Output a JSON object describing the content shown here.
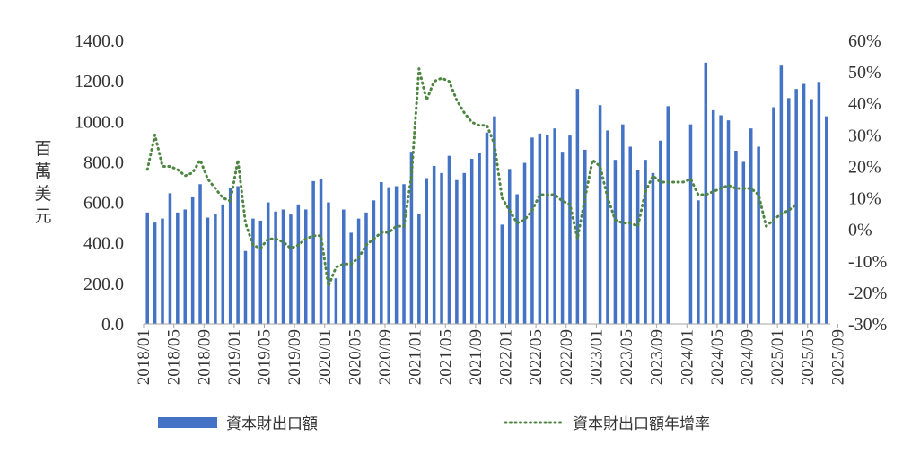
{
  "colors": {
    "bar": "#4472C4",
    "line": "#4E8542",
    "axis": "#A6A6A6",
    "text": "#333333"
  },
  "chart_data": {
    "type": "bar+line",
    "ylabel": "百萬美元",
    "ylim": [
      0,
      1400
    ],
    "y_ticks": [
      "0.0",
      "200.0",
      "400.0",
      "600.0",
      "800.0",
      "1000.0",
      "1200.0",
      "1400.0"
    ],
    "y2lim": [
      -30,
      60
    ],
    "y2_ticks": [
      "-30%",
      "-20%",
      "-10%",
      "0%",
      "10%",
      "20%",
      "30%",
      "40%",
      "50%",
      "60%"
    ],
    "x_tick_labels": [
      "2018/01",
      "2018/05",
      "2018/09",
      "2019/01",
      "2019/05",
      "2019/09",
      "2020/01",
      "2020/05",
      "2020/09",
      "2021/01",
      "2021/05",
      "2021/09",
      "2022/01",
      "2022/05",
      "2022/09",
      "2023/01",
      "2023/05",
      "2023/09",
      "2024/01",
      "2024/05",
      "2024/09",
      "2025/01",
      "2025/05",
      "2025/09"
    ],
    "x_tick_every": 4,
    "grid": false,
    "legend_position": "bottom",
    "series": [
      {
        "name": "資本財出口額",
        "type": "bar",
        "axis": "left",
        "values": [
          550,
          500,
          520,
          645,
          550,
          565,
          625,
          690,
          525,
          545,
          590,
          670,
          680,
          360,
          520,
          510,
          600,
          555,
          565,
          540,
          590,
          565,
          705,
          715,
          600,
          225,
          565,
          450,
          520,
          550,
          610,
          700,
          675,
          680,
          690,
          850,
          545,
          720,
          780,
          745,
          830,
          710,
          745,
          815,
          845,
          945,
          1025,
          490,
          765,
          640,
          795,
          920,
          940,
          935,
          965,
          850,
          930,
          1160,
          860,
          null,
          1080,
          955,
          810,
          985,
          875,
          760,
          810,
          745,
          905,
          1075,
          null,
          null,
          985,
          610,
          1290,
          1055,
          1030,
          1005,
          855,
          800,
          965,
          875,
          null,
          1070,
          1275,
          1115,
          1160,
          1185,
          1110,
          1195,
          1025
        ]
      },
      {
        "name": "資本財出口額年增率",
        "type": "line",
        "axis": "right",
        "style": "dotted",
        "values": [
          19,
          30,
          20,
          20,
          19,
          17,
          18,
          22,
          16,
          13,
          10,
          9,
          22,
          2,
          -5,
          -6,
          -3,
          -3,
          -4,
          -6,
          -5,
          -3,
          -2,
          -2,
          -18,
          -12,
          -11,
          -11,
          -9,
          -5,
          -3,
          -1,
          -1,
          1,
          1,
          17,
          51,
          41,
          47,
          48,
          47,
          41,
          37,
          34,
          33,
          33,
          27,
          10,
          6,
          2,
          3,
          6,
          11,
          11,
          11,
          9,
          8,
          -3,
          10,
          22,
          20,
          10,
          3,
          2,
          2,
          1,
          12,
          17,
          15,
          15,
          15,
          15,
          16,
          11,
          11,
          12,
          13,
          14,
          13,
          13,
          13,
          11,
          1,
          3,
          5,
          6,
          8
        ]
      }
    ]
  }
}
